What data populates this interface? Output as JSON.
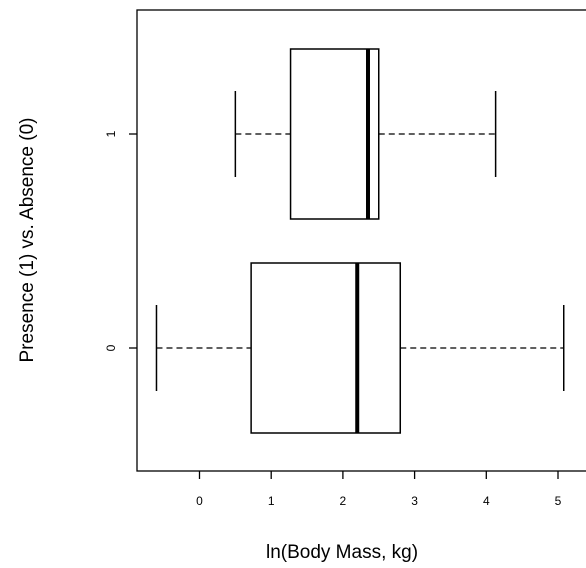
{
  "chart_data": {
    "type": "boxplot",
    "orientation": "horizontal",
    "title": "",
    "xlabel": "ln(Body Mass, kg)",
    "ylabel": "Presence (1) vs. Absence (0)",
    "xlim": [
      -0.95,
      5.4
    ],
    "xticks": [
      0,
      1,
      2,
      3,
      4,
      5
    ],
    "grid": false,
    "legend": "none",
    "categories": [
      "0",
      "1"
    ],
    "boxes": [
      {
        "category": "0",
        "whisker_low": -0.6,
        "q1": 0.72,
        "median": 2.2,
        "q3": 2.8,
        "whisker_high": 5.08
      },
      {
        "category": "1",
        "whisker_low": 0.5,
        "q1": 1.27,
        "median": 2.35,
        "q3": 2.5,
        "whisker_high": 4.13
      }
    ]
  }
}
